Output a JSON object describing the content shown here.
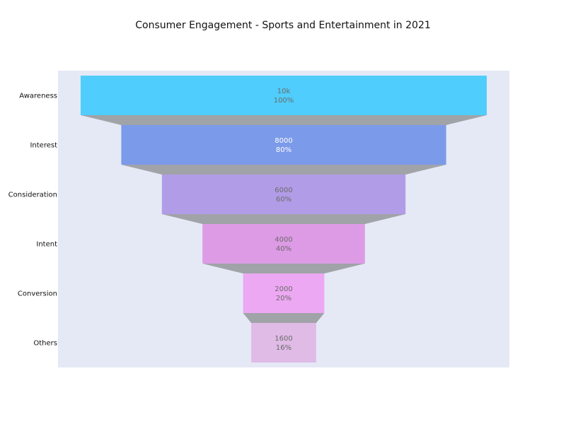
{
  "chart_data": {
    "type": "funnel",
    "title": "Consumer Engagement - Sports and Entertainment in 2021",
    "categories": [
      "Awareness",
      "Interest",
      "Consideration",
      "Intent",
      "Conversion",
      "Others"
    ],
    "values": [
      10000,
      8000,
      6000,
      4000,
      2000,
      1600
    ],
    "value_labels": [
      "10k",
      "8000",
      "6000",
      "4000",
      "2000",
      "1600"
    ],
    "percent_labels": [
      "100%",
      "80%",
      "60%",
      "40%",
      "20%",
      "16%"
    ],
    "colors": {
      "plot_background": "#e5e9f6",
      "connector": "#a0a3a8",
      "stages": [
        "#4fcdfc",
        "#7b9ae9",
        "#b19ce7",
        "#dd9be5",
        "#eda8f3",
        "#dfbbe6"
      ],
      "label_text": [
        "#6b6b6b",
        "#ffffff",
        "#6b6b6b",
        "#6b6b6b",
        "#6b6b6b",
        "#6b6b6b"
      ]
    }
  }
}
